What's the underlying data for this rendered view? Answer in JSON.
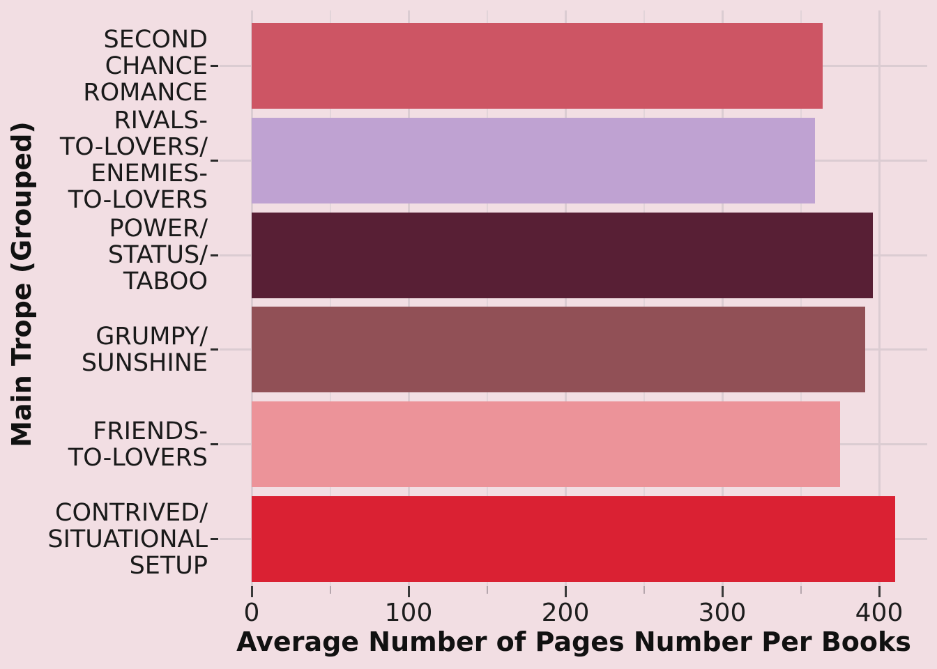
{
  "chart_data": {
    "type": "bar",
    "orientation": "horizontal",
    "title": "",
    "xlabel": "Average Number of Pages Number Per Books",
    "ylabel": "Main Trope (Grouped)",
    "categories": [
      "SECOND CHANCE ROMANCE",
      "RIVALS-TO-LOVERS/ENEMIES-TO-LOVERS",
      "POWER/STATUS/TABOO",
      "GRUMPY/SUNSHINE",
      "FRIENDS-TO-LOVERS",
      "CONTRIVED/SITUATIONAL SETUP"
    ],
    "category_display_lines": [
      [
        "SECOND",
        "CHANCE",
        "ROMANCE"
      ],
      [
        "RIVALS-",
        "TO-LOVERS/",
        "ENEMIES-",
        "TO-LOVERS"
      ],
      [
        "POWER/",
        "STATUS/",
        "TABOO"
      ],
      [
        "GRUMPY/",
        "SUNSHINE"
      ],
      [
        "FRIENDS-",
        "TO-LOVERS"
      ],
      [
        "CONTRIVED/",
        "SITUATIONAL",
        "SETUP"
      ]
    ],
    "values": [
      364,
      359,
      396,
      391,
      375,
      410
    ],
    "bar_colors": [
      "#cd5564",
      "#bfa2d2",
      "#581f35",
      "#915056",
      "#ec9399",
      "#da2133"
    ],
    "xlim": [
      -20.5,
      430.5
    ],
    "x_major_ticks": [
      0,
      100,
      200,
      300,
      400
    ],
    "x_major_tick_labels": [
      "0",
      "100",
      "200",
      "300",
      "400"
    ],
    "x_minor_ticks": [
      50,
      150,
      250,
      350
    ],
    "grid": true,
    "legend": null
  },
  "style": {
    "background": "#f2dee3",
    "grid_major_color": "#dbccd2",
    "grid_minor_color": "#e2d4d9",
    "tick_color": "#2b2b2b",
    "minor_tick_color": "#b5a6ad",
    "text_color": "#1a1a1a"
  }
}
